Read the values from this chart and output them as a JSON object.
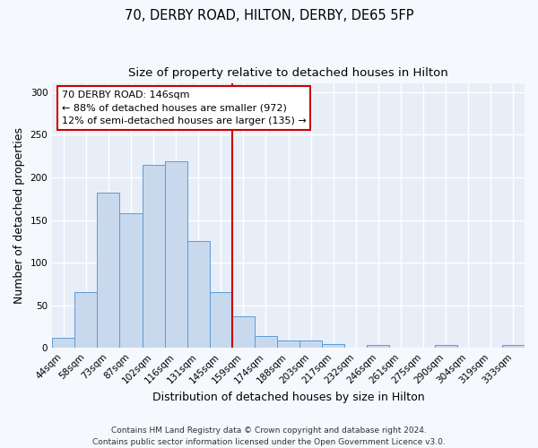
{
  "title": "70, DERBY ROAD, HILTON, DERBY, DE65 5FP",
  "subtitle": "Size of property relative to detached houses in Hilton",
  "xlabel": "Distribution of detached houses by size in Hilton",
  "ylabel": "Number of detached properties",
  "bar_labels": [
    "44sqm",
    "58sqm",
    "73sqm",
    "87sqm",
    "102sqm",
    "116sqm",
    "131sqm",
    "145sqm",
    "159sqm",
    "174sqm",
    "188sqm",
    "203sqm",
    "217sqm",
    "232sqm",
    "246sqm",
    "261sqm",
    "275sqm",
    "290sqm",
    "304sqm",
    "319sqm",
    "333sqm"
  ],
  "bar_heights": [
    12,
    65,
    182,
    158,
    215,
    219,
    125,
    65,
    37,
    14,
    9,
    9,
    5,
    0,
    3,
    0,
    0,
    3,
    0,
    0,
    3
  ],
  "bar_color": "#c8d9ee",
  "bar_edge_color": "#5b9bd5",
  "vline_color": "#cc0000",
  "vline_position": 7.5,
  "ylim": [
    0,
    310
  ],
  "yticks": [
    0,
    50,
    100,
    150,
    200,
    250,
    300
  ],
  "annotation_title": "70 DERBY ROAD: 146sqm",
  "annotation_line1": "← 88% of detached houses are smaller (972)",
  "annotation_line2": "12% of semi-detached houses are larger (135) →",
  "annotation_box_facecolor": "#ffffff",
  "annotation_box_edgecolor": "#cc0000",
  "footer_line1": "Contains HM Land Registry data © Crown copyright and database right 2024.",
  "footer_line2": "Contains public sector information licensed under the Open Government Licence v3.0.",
  "plot_bg_color": "#e8eef8",
  "fig_bg_color": "#f5f8fd",
  "grid_color": "#ffffff",
  "title_fontsize": 10.5,
  "subtitle_fontsize": 9.5,
  "axis_label_fontsize": 9,
  "tick_fontsize": 7.5,
  "annotation_fontsize": 8,
  "footer_fontsize": 6.5
}
